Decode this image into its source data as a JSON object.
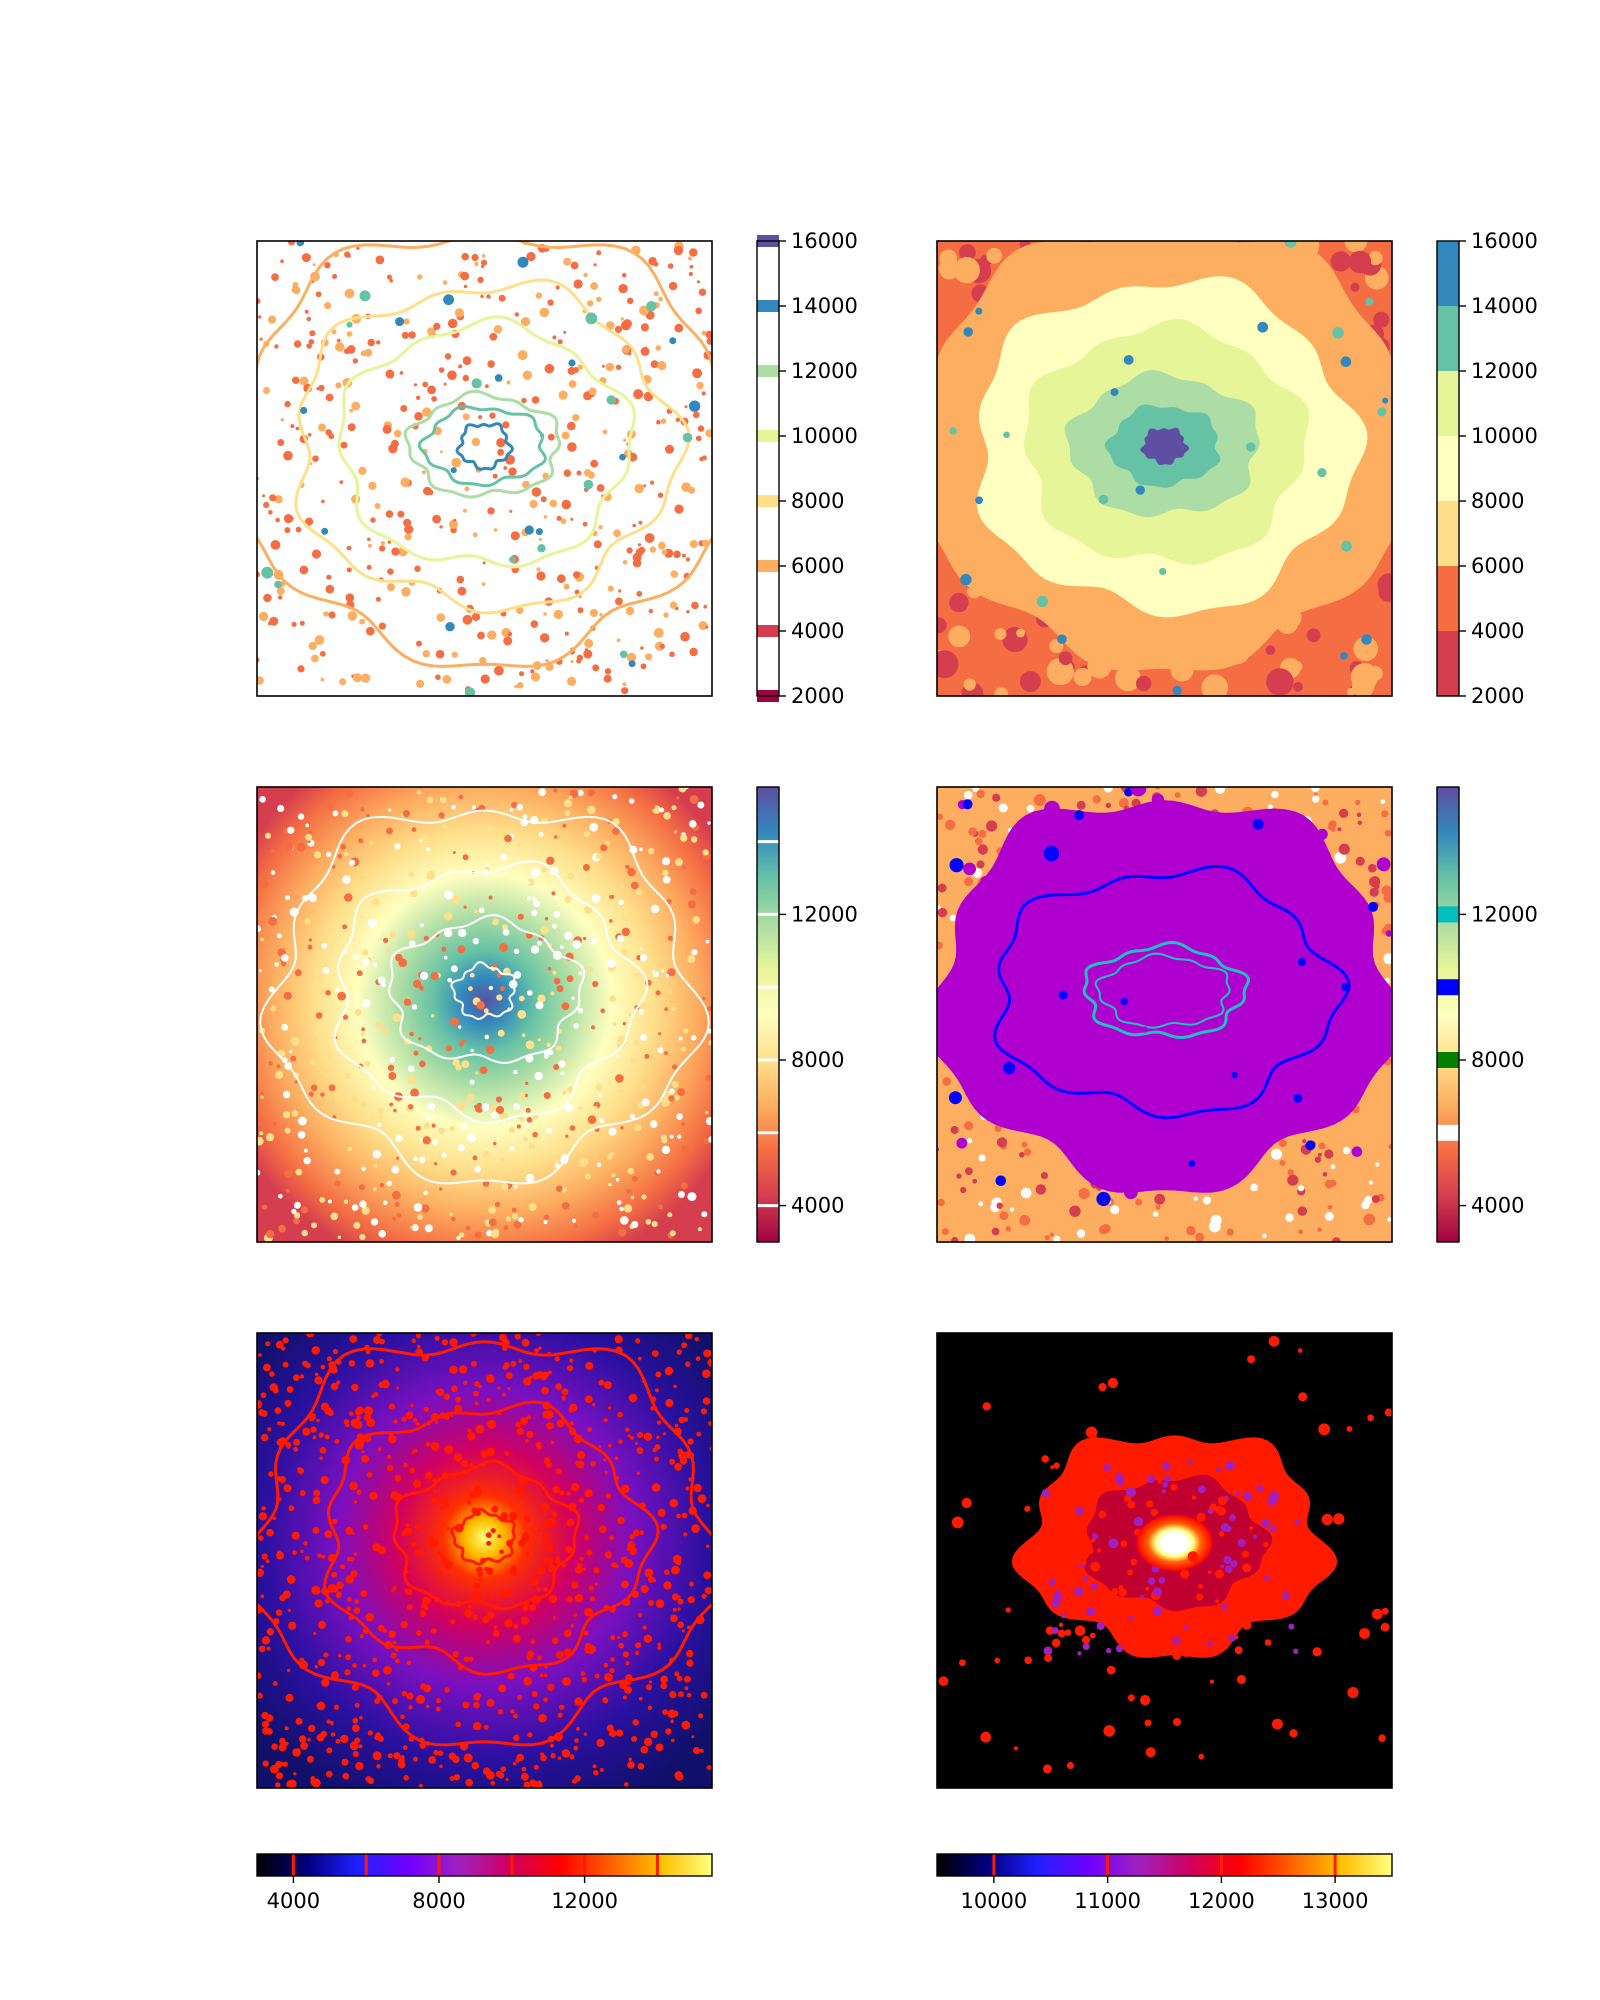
{
  "chart_data": [
    {
      "type": "heatmap",
      "style": "contour-lines",
      "colormap": "Spectral",
      "colorbar": {
        "orientation": "vertical",
        "range": [
          2000,
          16000
        ],
        "ticks": [
          2000,
          4000,
          6000,
          8000,
          10000,
          12000,
          14000,
          16000
        ],
        "tick_labels": [
          "2000",
          "4000",
          "6000",
          "8000",
          "10000",
          "12000",
          "14000",
          "16000"
        ],
        "levels": [
          2000,
          4000,
          6000,
          8000,
          10000,
          12000,
          14000,
          16000
        ]
      }
    },
    {
      "type": "heatmap",
      "style": "filled-contours",
      "colormap": "Spectral",
      "colorbar": {
        "orientation": "vertical",
        "range": [
          2000,
          16000
        ],
        "ticks": [
          2000,
          4000,
          6000,
          8000,
          10000,
          12000,
          14000,
          16000
        ],
        "tick_labels": [
          "2000",
          "4000",
          "6000",
          "8000",
          "10000",
          "12000",
          "14000",
          "16000"
        ],
        "levels": [
          2000,
          4000,
          6000,
          8000,
          10000,
          12000,
          14000,
          16000
        ]
      }
    },
    {
      "type": "heatmap",
      "style": "image-with-white-contours",
      "colormap": "Spectral",
      "colorbar": {
        "orientation": "vertical",
        "range": [
          3000,
          15500
        ],
        "ticks": [
          4000,
          8000,
          12000
        ],
        "tick_labels": [
          "4000",
          "8000",
          "12000"
        ],
        "line_marks": [
          4000,
          6000,
          8000,
          10000,
          12000,
          14000
        ]
      }
    },
    {
      "type": "heatmap",
      "style": "image-with-colored-contours",
      "colormap": "Spectral",
      "colorbar": {
        "orientation": "vertical",
        "range": [
          3000,
          15500
        ],
        "ticks": [
          4000,
          8000,
          12000
        ],
        "tick_labels": [
          "4000",
          "8000",
          "12000"
        ],
        "band_marks": [
          {
            "value": 6000,
            "color": "#ffffff"
          },
          {
            "value": 8000,
            "color": "#008000"
          },
          {
            "value": 10000,
            "color": "#0000ff"
          },
          {
            "value": 12000,
            "color": "#00bfbf"
          }
        ]
      }
    },
    {
      "type": "heatmap",
      "style": "image-with-red-contours",
      "colormap": "gnuplot2",
      "colorbar": {
        "orientation": "horizontal",
        "range": [
          3000,
          15500
        ],
        "ticks": [
          4000,
          8000,
          12000
        ],
        "tick_labels": [
          "4000",
          "8000",
          "12000"
        ],
        "line_marks": [
          4000,
          6000,
          8000,
          10000,
          12000,
          14000
        ]
      }
    },
    {
      "type": "heatmap",
      "style": "image-with-red-contours",
      "colormap": "gnuplot2",
      "colorbar": {
        "orientation": "horizontal",
        "range": [
          9500,
          13500
        ],
        "ticks": [
          10000,
          11000,
          12000,
          13000
        ],
        "tick_labels": [
          "10000",
          "11000",
          "12000",
          "13000"
        ],
        "line_marks": [
          10000,
          11000,
          12000,
          13000
        ]
      }
    }
  ],
  "colors": {
    "spectral": [
      "#9e0142",
      "#d53e4f",
      "#f46d43",
      "#fdae61",
      "#fee08b",
      "#ffffbf",
      "#e6f598",
      "#abdda4",
      "#66c2a5",
      "#3288bd",
      "#5e4fa2"
    ],
    "gnuplot2": [
      "#000000",
      "#000080",
      "#2020ff",
      "#7000ff",
      "#a020c0",
      "#d00060",
      "#ff0000",
      "#ff6000",
      "#ffc000",
      "#ffff80"
    ],
    "contour_red": "#ff1a00",
    "fill_purple": "#b000d0",
    "contour_blue": "#0000ff",
    "contour_cyan": "#20c0c0"
  }
}
